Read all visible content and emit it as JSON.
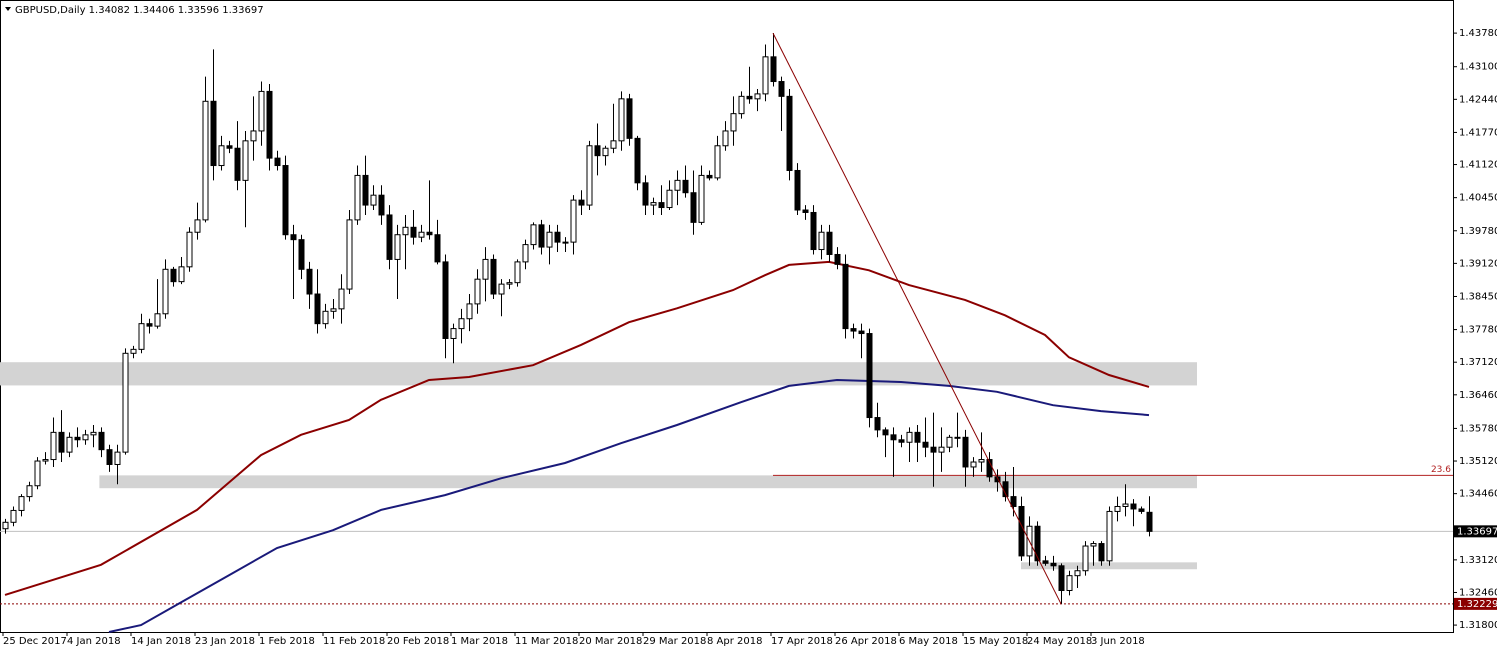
{
  "chart_data": {
    "type": "candlestick",
    "title": "GBPUSD,Daily  1.34082 1.34406 1.33596 1.33697",
    "xlim": [
      -0.625,
      181
    ],
    "ylim": [
      1.3166,
      1.4445
    ],
    "xticks": [
      {
        "value": 0,
        "label": "25 Dec 2017"
      },
      {
        "value": 8,
        "label": "4 Jan 2018"
      },
      {
        "value": 16,
        "label": "14 Jan 2018"
      },
      {
        "value": 24,
        "label": "23 Jan 2018"
      },
      {
        "value": 32,
        "label": "1 Feb 2018"
      },
      {
        "value": 40,
        "label": "11 Feb 2018"
      },
      {
        "value": 48,
        "label": "20 Feb 2018"
      },
      {
        "value": 56,
        "label": "1 Mar 2018"
      },
      {
        "value": 64,
        "label": "11 Mar 2018"
      },
      {
        "value": 72,
        "label": "20 Mar 2018"
      },
      {
        "value": 80,
        "label": "29 Mar 2018"
      },
      {
        "value": 88,
        "label": "8 Apr 2018"
      },
      {
        "value": 96,
        "label": "17 Apr 2018"
      },
      {
        "value": 104,
        "label": "26 Apr 2018"
      },
      {
        "value": 112,
        "label": "6 May 2018"
      },
      {
        "value": 120,
        "label": "15 May 2018"
      },
      {
        "value": 128,
        "label": "24 May 2018"
      },
      {
        "value": 136,
        "label": "3 Jun 2018"
      }
    ],
    "yticks": [
      {
        "value": 1.4378,
        "label": "1.43780"
      },
      {
        "value": 1.431,
        "label": "1.43100"
      },
      {
        "value": 1.4244,
        "label": "1.42440"
      },
      {
        "value": 1.4177,
        "label": "1.41770"
      },
      {
        "value": 1.4112,
        "label": "1.41120"
      },
      {
        "value": 1.4045,
        "label": "1.40450"
      },
      {
        "value": 1.3978,
        "label": "1.39780"
      },
      {
        "value": 1.3912,
        "label": "1.39120"
      },
      {
        "value": 1.3845,
        "label": "1.38450"
      },
      {
        "value": 1.3778,
        "label": "1.37780"
      },
      {
        "value": 1.3712,
        "label": "1.37120"
      },
      {
        "value": 1.3646,
        "label": "1.36460"
      },
      {
        "value": 1.3578,
        "label": "1.35780"
      },
      {
        "value": 1.3512,
        "label": "1.35120"
      },
      {
        "value": 1.3446,
        "label": "1.34460"
      },
      {
        "value": 1.3312,
        "label": "1.33120"
      },
      {
        "value": 1.3246,
        "label": "1.32460"
      },
      {
        "value": 1.318,
        "label": "1.31800"
      }
    ],
    "up_color": "#ffffff",
    "down_color": "#000000",
    "ohlc": [
      [
        1.3375,
        1.3395,
        1.3365,
        1.3388
      ],
      [
        1.3388,
        1.342,
        1.338,
        1.3412
      ],
      [
        1.3412,
        1.3445,
        1.34,
        1.344
      ],
      [
        1.344,
        1.347,
        1.343,
        1.3462
      ],
      [
        1.3462,
        1.352,
        1.3455,
        1.3512
      ],
      [
        1.3512,
        1.353,
        1.3505,
        1.3515
      ],
      [
        1.3515,
        1.36,
        1.35,
        1.357
      ],
      [
        1.357,
        1.3615,
        1.351,
        1.353
      ],
      [
        1.353,
        1.357,
        1.352,
        1.356
      ],
      [
        1.356,
        1.358,
        1.354,
        1.3555
      ],
      [
        1.3555,
        1.3575,
        1.3545,
        1.3565
      ],
      [
        1.3565,
        1.3585,
        1.354,
        1.357
      ],
      [
        1.357,
        1.358,
        1.352,
        1.3535
      ],
      [
        1.3535,
        1.3545,
        1.349,
        1.3505
      ],
      [
        1.3505,
        1.3545,
        1.3465,
        1.353
      ],
      [
        1.353,
        1.374,
        1.3525,
        1.373
      ],
      [
        1.373,
        1.3745,
        1.372,
        1.3738
      ],
      [
        1.3738,
        1.381,
        1.373,
        1.379
      ],
      [
        1.379,
        1.38,
        1.377,
        1.3785
      ],
      [
        1.3785,
        1.388,
        1.378,
        1.381
      ],
      [
        1.381,
        1.392,
        1.38,
        1.39
      ],
      [
        1.39,
        1.3905,
        1.3865,
        1.3875
      ],
      [
        1.3875,
        1.3925,
        1.387,
        1.3905
      ],
      [
        1.3905,
        1.3985,
        1.3895,
        1.3975
      ],
      [
        1.3975,
        1.4035,
        1.396,
        1.4
      ],
      [
        1.4,
        1.429,
        1.3995,
        1.424
      ],
      [
        1.424,
        1.4345,
        1.408,
        1.411
      ],
      [
        1.411,
        1.417,
        1.41,
        1.415
      ],
      [
        1.415,
        1.416,
        1.4135,
        1.4145
      ],
      [
        1.4145,
        1.42,
        1.406,
        1.408
      ],
      [
        1.408,
        1.418,
        1.3985,
        1.416
      ],
      [
        1.416,
        1.425,
        1.412,
        1.418
      ],
      [
        1.418,
        1.428,
        1.415,
        1.426
      ],
      [
        1.426,
        1.4275,
        1.41,
        1.4125
      ],
      [
        1.4125,
        1.414,
        1.41,
        1.411
      ],
      [
        1.411,
        1.413,
        1.396,
        1.397
      ],
      [
        1.397,
        1.399,
        1.384,
        1.396
      ],
      [
        1.396,
        1.397,
        1.388,
        1.39
      ],
      [
        1.39,
        1.3915,
        1.382,
        1.385
      ],
      [
        1.385,
        1.39,
        1.377,
        1.379
      ],
      [
        1.379,
        1.383,
        1.378,
        1.3815
      ],
      [
        1.3815,
        1.384,
        1.38,
        1.382
      ],
      [
        1.382,
        1.389,
        1.379,
        1.386
      ],
      [
        1.386,
        1.402,
        1.385,
        1.4
      ],
      [
        1.4,
        1.411,
        1.399,
        1.409
      ],
      [
        1.409,
        1.413,
        1.401,
        1.403
      ],
      [
        1.403,
        1.407,
        1.402,
        1.405
      ],
      [
        1.405,
        1.407,
        1.399,
        1.401
      ],
      [
        1.401,
        1.403,
        1.39,
        1.392
      ],
      [
        1.392,
        1.399,
        1.384,
        1.397
      ],
      [
        1.397,
        1.401,
        1.39,
        1.3985
      ],
      [
        1.3985,
        1.402,
        1.395,
        1.3965
      ],
      [
        1.3965,
        1.399,
        1.3955,
        1.3975
      ],
      [
        1.3975,
        1.408,
        1.396,
        1.397
      ],
      [
        1.397,
        1.4,
        1.391,
        1.3915
      ],
      [
        1.3915,
        1.393,
        1.372,
        1.376
      ],
      [
        1.376,
        1.379,
        1.371,
        1.378
      ],
      [
        1.378,
        1.382,
        1.375,
        1.38
      ],
      [
        1.38,
        1.385,
        1.3775,
        1.383
      ],
      [
        1.383,
        1.39,
        1.381,
        1.388
      ],
      [
        1.388,
        1.3945,
        1.3835,
        1.392
      ],
      [
        1.392,
        1.393,
        1.384,
        1.385
      ],
      [
        1.385,
        1.388,
        1.3805,
        1.387
      ],
      [
        1.387,
        1.388,
        1.386,
        1.3873
      ],
      [
        1.3873,
        1.392,
        1.3865,
        1.3915
      ],
      [
        1.3915,
        1.396,
        1.39,
        1.395
      ],
      [
        1.395,
        1.3995,
        1.394,
        1.399
      ],
      [
        1.399,
        1.4,
        1.393,
        1.3945
      ],
      [
        1.3945,
        1.399,
        1.391,
        1.3975
      ],
      [
        1.3975,
        1.399,
        1.3935,
        1.3955
      ],
      [
        1.3955,
        1.3965,
        1.3935,
        1.3955
      ],
      [
        1.3955,
        1.405,
        1.393,
        1.404
      ],
      [
        1.404,
        1.406,
        1.401,
        1.403
      ],
      [
        1.403,
        1.416,
        1.402,
        1.415
      ],
      [
        1.415,
        1.4195,
        1.409,
        1.413
      ],
      [
        1.413,
        1.415,
        1.411,
        1.4145
      ],
      [
        1.4145,
        1.4235,
        1.4135,
        1.416
      ],
      [
        1.416,
        1.426,
        1.414,
        1.4245
      ],
      [
        1.4245,
        1.4255,
        1.415,
        1.4165
      ],
      [
        1.4165,
        1.417,
        1.406,
        1.4075
      ],
      [
        1.4075,
        1.409,
        1.401,
        1.403
      ],
      [
        1.403,
        1.4045,
        1.401,
        1.4035
      ],
      [
        1.4035,
        1.407,
        1.401,
        1.4025
      ],
      [
        1.4025,
        1.408,
        1.402,
        1.406
      ],
      [
        1.406,
        1.41,
        1.403,
        1.408
      ],
      [
        1.408,
        1.411,
        1.4045,
        1.4055
      ],
      [
        1.4055,
        1.41,
        1.397,
        1.3995
      ],
      [
        1.3995,
        1.411,
        1.399,
        1.409
      ],
      [
        1.409,
        1.41,
        1.408,
        1.4085
      ],
      [
        1.4085,
        1.417,
        1.408,
        1.415
      ],
      [
        1.415,
        1.42,
        1.414,
        1.418
      ],
      [
        1.418,
        1.425,
        1.415,
        1.4215
      ],
      [
        1.4215,
        1.426,
        1.4205,
        1.425
      ],
      [
        1.425,
        1.431,
        1.4235,
        1.4245
      ],
      [
        1.4245,
        1.4265,
        1.422,
        1.4255
      ],
      [
        1.4255,
        1.4355,
        1.424,
        1.433
      ],
      [
        1.433,
        1.4378,
        1.427,
        1.428
      ],
      [
        1.428,
        1.429,
        1.418,
        1.425
      ],
      [
        1.425,
        1.4265,
        1.408,
        1.41
      ],
      [
        1.41,
        1.4115,
        1.401,
        1.402
      ],
      [
        1.402,
        1.403,
        1.4,
        1.4015
      ],
      [
        1.4015,
        1.403,
        1.393,
        1.394
      ],
      [
        1.394,
        1.399,
        1.392,
        1.3975
      ],
      [
        1.3975,
        1.399,
        1.3915,
        1.393
      ],
      [
        1.393,
        1.3945,
        1.39,
        1.391
      ],
      [
        1.391,
        1.393,
        1.376,
        1.378
      ],
      [
        1.378,
        1.379,
        1.376,
        1.3775
      ],
      [
        1.3775,
        1.379,
        1.372,
        1.377
      ],
      [
        1.377,
        1.378,
        1.358,
        1.36
      ],
      [
        1.36,
        1.363,
        1.356,
        1.3575
      ],
      [
        1.3575,
        1.358,
        1.352,
        1.3565
      ],
      [
        1.3565,
        1.358,
        1.348,
        1.3555
      ],
      [
        1.3555,
        1.3565,
        1.354,
        1.355
      ],
      [
        1.355,
        1.358,
        1.351,
        1.357
      ],
      [
        1.357,
        1.3585,
        1.351,
        1.355
      ],
      [
        1.355,
        1.36,
        1.352,
        1.354
      ],
      [
        1.354,
        1.361,
        1.346,
        1.353
      ],
      [
        1.353,
        1.358,
        1.349,
        1.354
      ],
      [
        1.354,
        1.3565,
        1.353,
        1.356
      ],
      [
        1.356,
        1.361,
        1.354,
        1.356
      ],
      [
        1.356,
        1.3575,
        1.346,
        1.35
      ],
      [
        1.35,
        1.352,
        1.348,
        1.351
      ],
      [
        1.351,
        1.357,
        1.349,
        1.3515
      ],
      [
        1.3515,
        1.353,
        1.347,
        1.348
      ],
      [
        1.348,
        1.3495,
        1.345,
        1.347
      ],
      [
        1.347,
        1.349,
        1.343,
        1.344
      ],
      [
        1.344,
        1.35,
        1.34,
        1.342
      ],
      [
        1.342,
        1.344,
        1.331,
        1.332
      ],
      [
        1.332,
        1.34,
        1.33,
        1.338
      ],
      [
        1.338,
        1.339,
        1.33,
        1.331
      ],
      [
        1.331,
        1.332,
        1.33,
        1.3305
      ],
      [
        1.3305,
        1.332,
        1.329,
        1.33
      ],
      [
        1.33,
        1.3305,
        1.3223,
        1.325
      ],
      [
        1.325,
        1.329,
        1.324,
        1.328
      ],
      [
        1.328,
        1.33,
        1.3255,
        1.329
      ],
      [
        1.329,
        1.335,
        1.328,
        1.334
      ],
      [
        1.334,
        1.335,
        1.33,
        1.3345
      ],
      [
        1.3345,
        1.335,
        1.33,
        1.331
      ],
      [
        1.331,
        1.342,
        1.33,
        1.341
      ],
      [
        1.341,
        1.344,
        1.339,
        1.342
      ],
      [
        1.342,
        1.3465,
        1.34,
        1.3425
      ],
      [
        1.3425,
        1.3435,
        1.338,
        1.3415
      ],
      [
        1.3415,
        1.342,
        1.3405,
        1.341
      ],
      [
        1.34082,
        1.34406,
        1.33596,
        1.33697
      ]
    ],
    "series": [
      {
        "type": "line",
        "color": "#8b0000",
        "x": [
          0,
          12,
          24,
          32,
          37,
          43,
          47,
          53,
          58,
          66,
          72,
          78,
          84,
          91,
          95,
          98,
          103,
          108,
          113,
          120,
          125,
          130,
          133,
          138,
          143
        ],
        "values": [
          1.3241,
          1.3302,
          1.3413,
          1.3524,
          1.3565,
          1.3595,
          1.3636,
          1.3676,
          1.3682,
          1.3706,
          1.3747,
          1.3793,
          1.3821,
          1.3858,
          1.3888,
          1.3909,
          1.3915,
          1.3898,
          1.3868,
          1.3838,
          1.3807,
          1.3767,
          1.3722,
          1.3686,
          1.3662
        ]
      },
      {
        "type": "line",
        "color": "#1a1a7a",
        "x": [
          13,
          17,
          22,
          28,
          34,
          41,
          47,
          55,
          62,
          70,
          77,
          84,
          92,
          98,
          104,
          112,
          118,
          124,
          131,
          137,
          143
        ],
        "values": [
          1.3166,
          1.318,
          1.3226,
          1.3281,
          1.3336,
          1.3372,
          1.3413,
          1.3443,
          1.3477,
          1.3508,
          1.3548,
          1.3585,
          1.3631,
          1.3664,
          1.3676,
          1.3672,
          1.3664,
          1.3652,
          1.3625,
          1.3613,
          1.3605
        ]
      }
    ],
    "zones": [
      {
        "x": [
          -0.625,
          149
        ],
        "y": [
          1.3665,
          1.3712
        ]
      },
      {
        "x": [
          11.8,
          149
        ],
        "y": [
          1.3457,
          1.3483
        ]
      },
      {
        "x": [
          127,
          149
        ],
        "y": [
          1.3293,
          1.3307
        ]
      }
    ],
    "trendline": {
      "x": [
        96,
        132
      ],
      "values": [
        1.4378,
        1.3223
      ]
    },
    "fib_level": {
      "x": 96,
      "value": 1.3483,
      "label": 23.6
    },
    "price_line": 1.33697,
    "low_line": 1.32229
  }
}
